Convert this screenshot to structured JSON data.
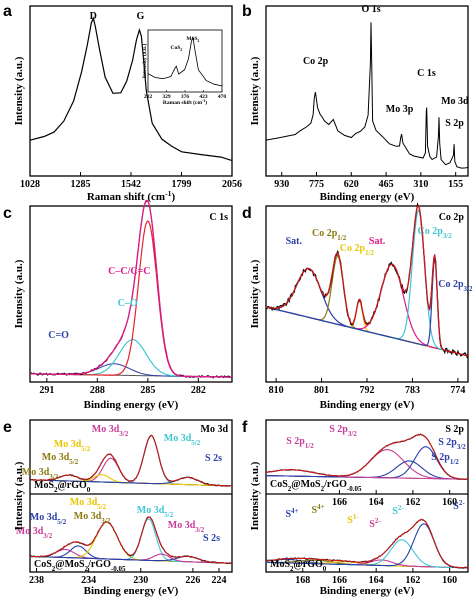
{
  "chart_data": [
    {
      "panel": "a",
      "type": "line",
      "xlabel": "Raman shift (cm",
      "xlabel_sup": "-1",
      "xlabel_tail": ")",
      "ylabel": "Intensity (a.u.)",
      "xticks": [
        "1028",
        "1285",
        "1542",
        "1799",
        "2056"
      ],
      "xlim": [
        1028,
        2056
      ],
      "peaks": [
        {
          "label": "D",
          "x": 1350
        },
        {
          "label": "G",
          "x": 1590
        }
      ],
      "series": [
        {
          "x": [
            1028,
            1100,
            1150,
            1200,
            1250,
            1290,
            1320,
            1340,
            1350,
            1360,
            1380,
            1410,
            1450,
            1490,
            1520,
            1550,
            1570,
            1585,
            1595,
            1605,
            1620,
            1650,
            1700,
            1750,
            1800,
            1900,
            2000,
            2056
          ],
          "y": [
            0.3,
            0.32,
            0.35,
            0.41,
            0.52,
            0.68,
            0.84,
            0.95,
            0.98,
            0.94,
            0.82,
            0.65,
            0.56,
            0.57,
            0.63,
            0.75,
            0.86,
            0.92,
            0.88,
            0.76,
            0.58,
            0.4,
            0.3,
            0.26,
            0.24,
            0.22,
            0.2,
            0.19
          ]
        }
      ],
      "inset": {
        "xlabel": "Raman shift (cm",
        "xlabel_sup": "-1",
        "xlabel_tail": ")",
        "ylabel": "Intensity (a.u.)",
        "xticks": [
          "282",
          "329",
          "376",
          "423",
          "470"
        ],
        "xlim": [
          282,
          470
        ],
        "peaks": [
          {
            "label": "CoS",
            "sub": "2",
            "x": 354
          },
          {
            "label": "MoS",
            "sub": "2",
            "x": 396
          }
        ],
        "series": [
          {
            "x": [
              282,
              300,
              320,
              340,
              350,
              354,
              360,
              375,
              385,
              392,
              396,
              400,
              410,
              430,
              450,
              470
            ],
            "y": [
              0.5,
              0.45,
              0.42,
              0.46,
              0.56,
              0.6,
              0.48,
              0.55,
              0.7,
              0.92,
              0.98,
              0.85,
              0.55,
              0.4,
              0.35,
              0.34
            ]
          }
        ]
      }
    },
    {
      "panel": "b",
      "type": "line",
      "xlabel": "Binding energy (eV)",
      "ylabel": "Intensity (a.u.)",
      "xticks": [
        "930",
        "775",
        "620",
        "465",
        "310",
        "155"
      ],
      "xlim": [
        1000,
        100
      ],
      "reversed": true,
      "peaks": [
        {
          "label": "Co 2p",
          "x": 780
        },
        {
          "label": "O 1s",
          "x": 532
        },
        {
          "label": "Mo 3p",
          "x": 398
        },
        {
          "label": "C 1s",
          "x": 285
        },
        {
          "label": "Mo 3d",
          "x": 229
        },
        {
          "label": "S 2p",
          "x": 162
        }
      ],
      "series": [
        {
          "x": [
            1000,
            950,
            900,
            870,
            850,
            820,
            800,
            790,
            785,
            780,
            770,
            760,
            750,
            740,
            720,
            700,
            680,
            650,
            620,
            600,
            580,
            560,
            545,
            535,
            532,
            529,
            525,
            510,
            480,
            450,
            420,
            405,
            400,
            396,
            390,
            360,
            340,
            300,
            290,
            286,
            284,
            280,
            270,
            260,
            240,
            232,
            229,
            226,
            220,
            200,
            180,
            165,
            162,
            159,
            150,
            130,
            110,
            100
          ],
          "y": [
            0.22,
            0.23,
            0.25,
            0.26,
            0.28,
            0.3,
            0.33,
            0.38,
            0.48,
            0.52,
            0.42,
            0.38,
            0.36,
            0.34,
            0.32,
            0.35,
            0.28,
            0.25,
            0.24,
            0.26,
            0.28,
            0.3,
            0.38,
            0.7,
            0.95,
            0.7,
            0.34,
            0.28,
            0.24,
            0.2,
            0.18,
            0.19,
            0.24,
            0.26,
            0.2,
            0.14,
            0.12,
            0.11,
            0.14,
            0.4,
            0.42,
            0.18,
            0.12,
            0.1,
            0.12,
            0.24,
            0.36,
            0.2,
            0.1,
            0.07,
            0.08,
            0.13,
            0.2,
            0.09,
            0.06,
            0.05,
            0.05,
            0.05
          ]
        }
      ]
    },
    {
      "panel": "c",
      "title": "C 1s",
      "type": "line",
      "xlabel": "Binding energy (eV)",
      "ylabel": "Intensity (a.u.)",
      "xticks": [
        "291",
        "288",
        "285",
        "282"
      ],
      "xlim": [
        292,
        280
      ],
      "reversed": true,
      "colors": {
        "data": "#000000",
        "fit": "#e0188a",
        "cc": "#e8232a",
        "co": "#41c6d6",
        "c_eq_o": "#2a3fa8",
        "bg": "#555555"
      },
      "peaks": [
        {
          "label": "C–C/C=C",
          "x": 285.0
        },
        {
          "label": "C–O",
          "x": 285.9
        },
        {
          "label": "C=O",
          "x": 287.0
        }
      ]
    },
    {
      "panel": "d",
      "title": "Co 2p",
      "type": "line",
      "xlabel": "Binding energy (eV)",
      "ylabel": "Intensity (a.u.)",
      "xticks": [
        "810",
        "801",
        "792",
        "783",
        "774"
      ],
      "xlim": [
        812,
        772
      ],
      "reversed": true,
      "colors": {
        "data": "#000000",
        "fit": "#c81c1c",
        "sat1": "#2a3fa8",
        "co12": "#8a7a10",
        "co12b": "#e8c600",
        "sat2": "#e0188a",
        "co32": "#41c6d6",
        "co32b": "#2a3fa8",
        "bg": "#6a6a00"
      },
      "peaks": [
        {
          "label": "Sat.",
          "x": 803.5
        },
        {
          "label": "Co 2p",
          "sub": "1/2",
          "x": 797.8
        },
        {
          "label": "Co 2p",
          "sub": "1/2",
          "x": 793.5
        },
        {
          "label": "Sat.",
          "x": 787.0
        },
        {
          "label": "Co 2p",
          "sub": "3/2",
          "x": 781.8
        },
        {
          "label": "Co 2p",
          "sub": "3/2",
          "x": 778.6
        }
      ]
    },
    {
      "panel": "e",
      "title": "Mo 3d",
      "type": "line",
      "xlabel": "Binding energy (eV)",
      "ylabel": "Intensity (a.u.)",
      "xticks": [
        "238",
        "234",
        "230",
        "226",
        "224"
      ],
      "xlim": [
        238.5,
        223
      ],
      "reversed": true,
      "upper": {
        "sample": "MoS",
        "sample_sub": "2",
        "sample_tail": "@rGO",
        "sample_sub2": "0"
      },
      "lower": {
        "sample": "CoS",
        "sample_sub": "2",
        "sample_tail": "@MoS",
        "sample_sub2": "2",
        "sample_tail2": "/rGO",
        "sample_sub3": "-0.05"
      },
      "labels": {
        "mo3d32": "Mo 3d",
        "mo3d52": "Mo 3d",
        "s2s": "S 2s",
        "sub32": "3/2",
        "sub52": "5/2"
      }
    },
    {
      "panel": "f",
      "title": "S 2p",
      "type": "line",
      "xlabel": "Binding energy (eV)",
      "ylabel": "Intensity (a.u.)",
      "xticks_top": [
        "166",
        "164",
        "162",
        "160"
      ],
      "xticks": [
        "168",
        "166",
        "164",
        "162",
        "160"
      ],
      "xlim": [
        170,
        159
      ],
      "reversed": true,
      "upper": {
        "sample": "CoS",
        "sample_sub": "2",
        "sample_tail": "@MoS",
        "sample_sub2": "2",
        "sample_tail2": "/rGO",
        "sample_sub3": "-0.05"
      },
      "lower": {
        "sample": "MoS",
        "sample_sub": "2",
        "sample_tail": "@rGO",
        "sample_sub2": "0"
      },
      "labels": {
        "s2p12": "S 2p",
        "s2p32": "S 2p",
        "sub12": "1/2",
        "sub32": "3/2",
        "s4": "S",
        "s4sup": "4+",
        "s2": "S",
        "s2sup": "2-",
        "s1": "S",
        "s1sup": "1-"
      }
    }
  ],
  "panel_labels": [
    "a",
    "b",
    "c",
    "d",
    "e",
    "f"
  ]
}
